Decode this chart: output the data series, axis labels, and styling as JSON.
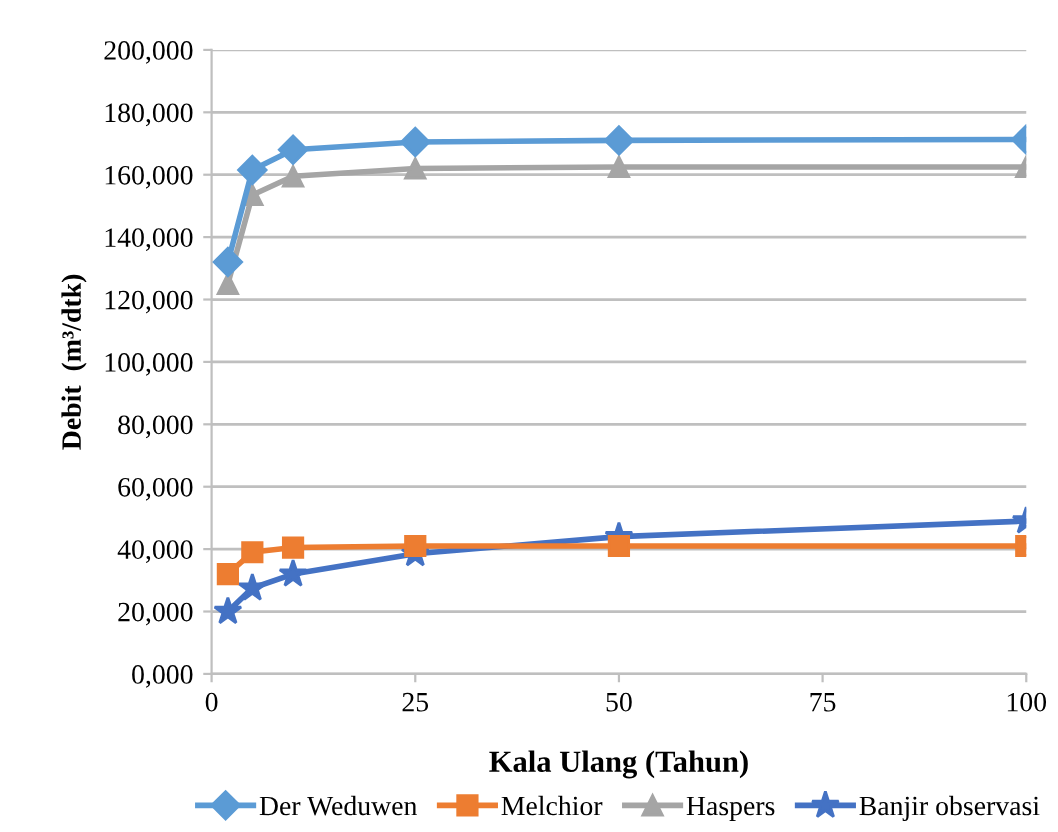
{
  "chart_data": {
    "type": "line",
    "xlabel": "Kala Ulang (Tahun)",
    "ylabel": "Debit  (m³/dtk)",
    "x": [
      2,
      5,
      10,
      25,
      50,
      100
    ],
    "series": [
      {
        "name": "Der Weduwen",
        "color": "#5b9bd5",
        "marker": "diamond",
        "values": [
          132000,
          161500,
          168000,
          170500,
          171000,
          171300
        ]
      },
      {
        "name": "Melchior",
        "color": "#ed7d31",
        "marker": "square",
        "values": [
          32000,
          39000,
          40500,
          41000,
          41000,
          41000
        ]
      },
      {
        "name": "Haspers",
        "color": "#a5a5a5",
        "marker": "triangle",
        "values": [
          125000,
          153500,
          159500,
          162000,
          162500,
          162500
        ]
      },
      {
        "name": "Banjir observasi",
        "color": "#4472c4",
        "marker": "star",
        "values": [
          20000,
          27500,
          32000,
          38500,
          44000,
          49000
        ]
      }
    ],
    "xlim": [
      0,
      100
    ],
    "xticks": [
      0,
      25,
      50,
      75,
      100
    ],
    "ylim": [
      0,
      200000
    ],
    "yticks": [
      {
        "value": 0,
        "label": "0,000"
      },
      {
        "value": 20000,
        "label": "20,000"
      },
      {
        "value": 40000,
        "label": "40,000"
      },
      {
        "value": 60000,
        "label": "60,000"
      },
      {
        "value": 80000,
        "label": "80,000"
      },
      {
        "value": 100000,
        "label": "100,000"
      },
      {
        "value": 120000,
        "label": "120,000"
      },
      {
        "value": 140000,
        "label": "140,000"
      },
      {
        "value": 160000,
        "label": "160,000"
      },
      {
        "value": 180000,
        "label": "180,000"
      },
      {
        "value": 200000,
        "label": "200,000"
      }
    ],
    "grid": "y",
    "legend": "bottom",
    "line_style": "solid"
  }
}
